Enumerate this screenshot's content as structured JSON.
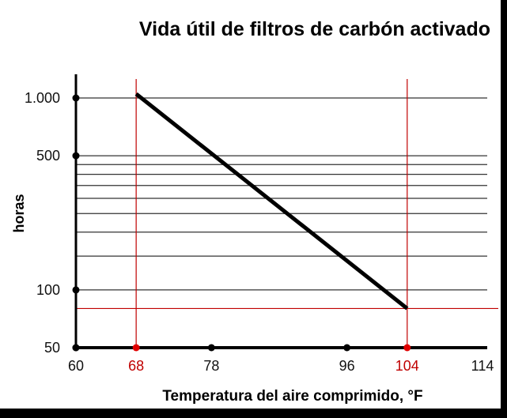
{
  "chart_data": {
    "type": "line",
    "title": "Vida útil de filtros de carbón activado",
    "xlabel": "Temperatura del aire comprimido,  °F",
    "ylabel": "horas",
    "x_scale": "linear",
    "y_scale": "log",
    "xlim": [
      60,
      114
    ],
    "ylim": [
      50,
      1000
    ],
    "x_ticks": [
      {
        "value": 60,
        "label": "60",
        "highlight": false
      },
      {
        "value": 68,
        "label": "68",
        "highlight": true
      },
      {
        "value": 78,
        "label": "78",
        "highlight": false
      },
      {
        "value": 96,
        "label": "96",
        "highlight": false
      },
      {
        "value": 104,
        "label": "104",
        "highlight": true
      },
      {
        "value": 114,
        "label": "114",
        "highlight": false
      }
    ],
    "y_ticks": [
      {
        "value": 1000,
        "label": "1.000"
      },
      {
        "value": 500,
        "label": "500"
      },
      {
        "value": 100,
        "label": "100"
      },
      {
        "value": 50,
        "label": "50"
      }
    ],
    "gridlines_y": [
      1000,
      500,
      450,
      400,
      350,
      300,
      250,
      200,
      150,
      100
    ],
    "series": [
      {
        "color": "#000000",
        "x": [
          68,
          104
        ],
        "y": [
          1050,
          80
        ]
      }
    ],
    "reference_lines": [
      {
        "orientation": "vertical",
        "x": 68,
        "color": "#c00000"
      },
      {
        "orientation": "vertical",
        "x": 104,
        "color": "#c00000"
      },
      {
        "orientation": "horizontal",
        "y": 80,
        "color": "#c00000"
      }
    ],
    "grid": true,
    "legend": "none"
  }
}
